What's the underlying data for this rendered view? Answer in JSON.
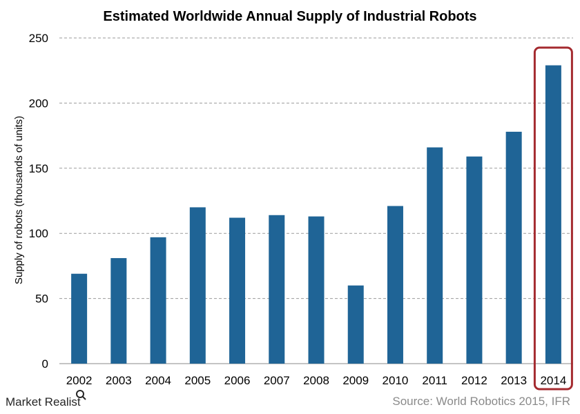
{
  "chart_data": {
    "type": "bar",
    "title": "Estimated  Worldwide  Annual  Supply  of Industrial  Robots",
    "xlabel": "",
    "ylabel": "Supply of robots (thousands of units)",
    "categories": [
      "2002",
      "2003",
      "2004",
      "2005",
      "2006",
      "2007",
      "2008",
      "2009",
      "2010",
      "2011",
      "2012",
      "2013",
      "2014"
    ],
    "series": [
      {
        "values": [
          69,
          81,
          97,
          120,
          112,
          114,
          113,
          60,
          121,
          166,
          159,
          178,
          229
        ]
      }
    ],
    "ylim": [
      0,
      250
    ],
    "yticks": [
      "0",
      "50",
      "100",
      "150",
      "200",
      "250"
    ],
    "grid": "horizontal dashed",
    "highlight_category": "2014",
    "colors": {
      "bar": "#1f6496",
      "highlight": "#a42a2f",
      "grid": "#9a9a9a"
    }
  },
  "footer": {
    "source": "Source: World Robotics 2015, IFR",
    "brand": "Market Realist"
  }
}
